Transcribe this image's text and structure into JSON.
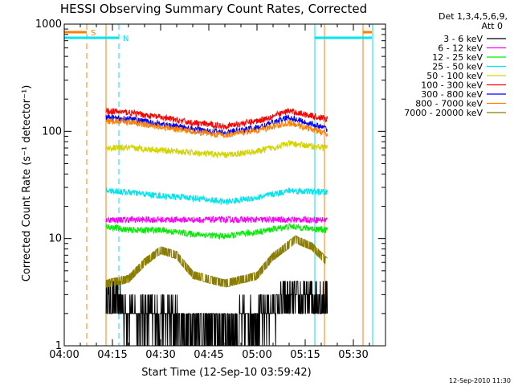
{
  "chart_data": {
    "type": "line",
    "title": "HESSI Observing Summary Count Rates, Corrected",
    "xlabel": "Start Time (12-Sep-10 03:59:42)",
    "ylabel": "Corrected Count Rate (s⁻¹ detector⁻¹)",
    "y_scale": "log",
    "xlim": [
      "04:00",
      "05:40"
    ],
    "ylim": [
      1,
      1000
    ],
    "x_tick_labels": [
      "04:00",
      "04:15",
      "04:30",
      "04:45",
      "05:00",
      "05:15",
      "05:30"
    ],
    "y_tick_labels": [
      "1",
      "10",
      "100",
      "1000"
    ],
    "legend": {
      "placement": "right",
      "header_lines": [
        "Det 1,3,4,5,6,9,",
        "Att 0"
      ]
    },
    "markers": [
      {
        "label": "S",
        "start": "03:59",
        "end": "04:07",
        "color": "#ff7f00"
      },
      {
        "label": "N",
        "start": "03:59",
        "end": "04:17",
        "color": "#00e5ee"
      },
      {
        "label": "",
        "start": "05:18",
        "end": "05:37",
        "color": "#00e5ee"
      },
      {
        "label": "",
        "start": "05:33",
        "end": "05:37",
        "color": "#ff7f00"
      }
    ],
    "vertical_lines": [
      {
        "time": "04:07",
        "color": "#ff7f00",
        "style": "dashed"
      },
      {
        "time": "04:13",
        "color": "#ff7f00",
        "style": "solid"
      },
      {
        "time": "04:17",
        "color": "#00e5ee",
        "style": "dashed"
      },
      {
        "time": "05:18",
        "color": "#00e5ee",
        "style": "solid"
      },
      {
        "time": "05:21",
        "color": "#ff7f00",
        "style": "solid"
      },
      {
        "time": "05:33",
        "color": "#ff7f00",
        "style": "solid"
      },
      {
        "time": "05:36",
        "color": "#00e5ee",
        "style": "solid"
      }
    ],
    "data_start": "04:13",
    "data_end": "05:22",
    "series": [
      {
        "name": "3 - 6 keV",
        "color": "#000000",
        "times": [
          "04:13",
          "04:20",
          "04:30",
          "04:40",
          "04:50",
          "05:00",
          "05:10",
          "05:22"
        ],
        "values": [
          3.0,
          2.0,
          1.8,
          1.5,
          1.4,
          1.8,
          2.5,
          2.8
        ]
      },
      {
        "name": "6 - 12 keV",
        "color": "#ff00ff",
        "times": [
          "04:13",
          "04:20",
          "04:30",
          "04:40",
          "04:50",
          "05:00",
          "05:10",
          "05:22"
        ],
        "values": [
          15,
          15,
          15,
          15,
          15,
          15,
          15,
          15
        ]
      },
      {
        "name": "12 - 25 keV",
        "color": "#00ee00",
        "times": [
          "04:13",
          "04:20",
          "04:30",
          "04:40",
          "04:50",
          "05:00",
          "05:10",
          "05:22"
        ],
        "values": [
          13,
          12,
          12,
          11,
          10.5,
          11.5,
          13,
          12
        ]
      },
      {
        "name": "25 - 50 keV",
        "color": "#00e5ee",
        "times": [
          "04:13",
          "04:20",
          "04:30",
          "04:40",
          "04:50",
          "05:00",
          "05:10",
          "05:22"
        ],
        "values": [
          28,
          27,
          25,
          24,
          22,
          24,
          28,
          27
        ]
      },
      {
        "name": "50 - 100 keV",
        "color": "#d4d400",
        "times": [
          "04:13",
          "04:20",
          "04:30",
          "04:40",
          "04:50",
          "05:00",
          "05:10",
          "05:22"
        ],
        "values": [
          70,
          70,
          67,
          63,
          60,
          65,
          77,
          70
        ]
      },
      {
        "name": "100 - 300 keV",
        "color": "#ff0000",
        "times": [
          "04:13",
          "04:20",
          "04:30",
          "04:40",
          "04:50",
          "05:00",
          "05:10",
          "05:22"
        ],
        "values": [
          155,
          150,
          135,
          120,
          112,
          125,
          155,
          130
        ]
      },
      {
        "name": "300 - 800 keV",
        "color": "#0000ff",
        "times": [
          "04:13",
          "04:20",
          "04:30",
          "04:40",
          "04:50",
          "05:00",
          "05:10",
          "05:22"
        ],
        "values": [
          135,
          130,
          117,
          105,
          97,
          108,
          135,
          105
        ]
      },
      {
        "name": "800 - 7000 keV",
        "color": "#ff7f00",
        "times": [
          "04:13",
          "04:20",
          "04:30",
          "04:40",
          "04:50",
          "05:00",
          "05:10",
          "05:22"
        ],
        "values": [
          125,
          122,
          110,
          100,
          92,
          102,
          120,
          95
        ]
      },
      {
        "name": "7000 - 20000 keV",
        "color": "#8b7d00",
        "times": [
          "04:13",
          "04:20",
          "04:25",
          "04:30",
          "04:35",
          "04:40",
          "04:50",
          "05:00",
          "05:05",
          "05:12",
          "05:17",
          "05:22"
        ],
        "values": [
          3.8,
          4.2,
          6.0,
          7.8,
          7.0,
          4.6,
          3.8,
          4.5,
          6.8,
          9.8,
          8.5,
          6.0
        ]
      }
    ]
  },
  "footer_timestamp": "12-Sep-2010 11:30"
}
